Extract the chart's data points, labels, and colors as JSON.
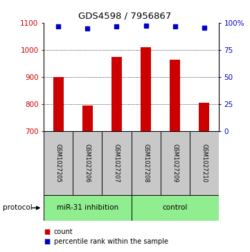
{
  "title": "GDS4598 / 7956867",
  "samples": [
    "GSM1027205",
    "GSM1027206",
    "GSM1027207",
    "GSM1027208",
    "GSM1027209",
    "GSM1027210"
  ],
  "counts": [
    900,
    793,
    973,
    1010,
    963,
    805
  ],
  "percentile_ranks": [
    96.5,
    94.5,
    96.8,
    97.0,
    96.8,
    95.5
  ],
  "group_labels": [
    "miR-31 inhibition",
    "control"
  ],
  "bar_color": "#CC0000",
  "dot_color": "#0000CC",
  "sample_box_color": "#C8C8C8",
  "protocol_color": "#90EE90",
  "ylim_left": [
    700,
    1100
  ],
  "ylim_right": [
    0,
    100
  ],
  "yticks_left": [
    700,
    800,
    900,
    1000,
    1100
  ],
  "yticks_right": [
    0,
    25,
    50,
    75,
    100
  ],
  "grid_values": [
    800,
    900,
    1000
  ],
  "background_color": "#ffffff",
  "legend_count_color": "#CC0000",
  "legend_pct_color": "#0000CC"
}
